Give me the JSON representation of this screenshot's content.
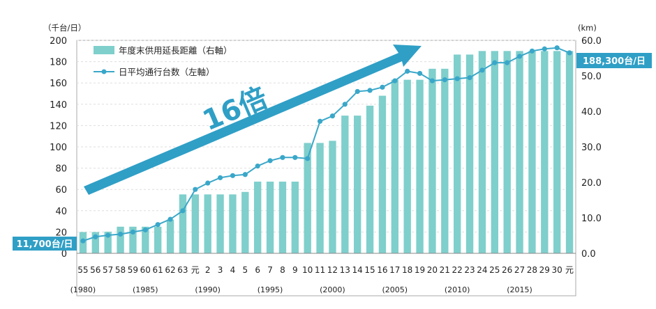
{
  "chart_data": {
    "type": "bar+line",
    "left_axis": {
      "unit_label": "（千台/日）",
      "min": 0,
      "max": 200,
      "ticks": [
        "0",
        "20",
        "40",
        "60",
        "80",
        "100",
        "120",
        "140",
        "160",
        "180",
        "200"
      ]
    },
    "right_axis": {
      "unit_label": "(km)",
      "min": 0,
      "max": 60,
      "ticks": [
        "0.0",
        "10.0",
        "20.0",
        "30.0",
        "40.0",
        "50.0",
        "60.0"
      ]
    },
    "categories": [
      "55",
      "56",
      "57",
      "58",
      "59",
      "60",
      "61",
      "62",
      "63",
      "元",
      "2",
      "3",
      "4",
      "5",
      "6",
      "7",
      "8",
      "9",
      "10",
      "11",
      "12",
      "13",
      "14",
      "15",
      "16",
      "17",
      "18",
      "19",
      "20",
      "21",
      "22",
      "23",
      "24",
      "25",
      "26",
      "27",
      "28",
      "29",
      "30",
      "元"
    ],
    "year_labels": [
      {
        "text": "(1980)",
        "at_index": 0
      },
      {
        "text": "(1985)",
        "at_index": 5
      },
      {
        "text": "(1990)",
        "at_index": 10
      },
      {
        "text": "(1995)",
        "at_index": 15
      },
      {
        "text": "(2000)",
        "at_index": 20
      },
      {
        "text": "(2005)",
        "at_index": 25
      },
      {
        "text": "(2010)",
        "at_index": 30
      },
      {
        "text": "(2015)",
        "at_index": 35
      }
    ],
    "series": [
      {
        "name": "年度末供用延長距離（右軸）",
        "kind": "bar",
        "axis": "right",
        "color": "#7fcfcc",
        "values": [
          6,
          6,
          6.1,
          7.5,
          7.5,
          7.5,
          7.5,
          9.5,
          16.6,
          16.6,
          16.6,
          16.6,
          16.6,
          17.3,
          20.2,
          20.2,
          20.2,
          20.2,
          31.1,
          31.1,
          31.7,
          38.8,
          38.8,
          41.6,
          44.4,
          48.9,
          48.9,
          48.9,
          52,
          52,
          56,
          56,
          57,
          57,
          57,
          57,
          57,
          57,
          57,
          57
        ]
      },
      {
        "name": "日平均通行台数（左軸）",
        "kind": "line",
        "axis": "left",
        "color": "#3aa7c9",
        "values": [
          11.7,
          15.5,
          17,
          18,
          20,
          22,
          27,
          32,
          40,
          60,
          66,
          71,
          73,
          74,
          82,
          87,
          90,
          90,
          89,
          124,
          129,
          140,
          152,
          153,
          156,
          162,
          171,
          169,
          162,
          163,
          164,
          165,
          172,
          179,
          179,
          185,
          190,
          192,
          193,
          188.3
        ]
      }
    ],
    "legend_position": "top-left",
    "annotations": {
      "growth_label": "16倍",
      "start_badge": "11,700台/日",
      "end_badge": "188,300台/日"
    },
    "grid": true
  }
}
